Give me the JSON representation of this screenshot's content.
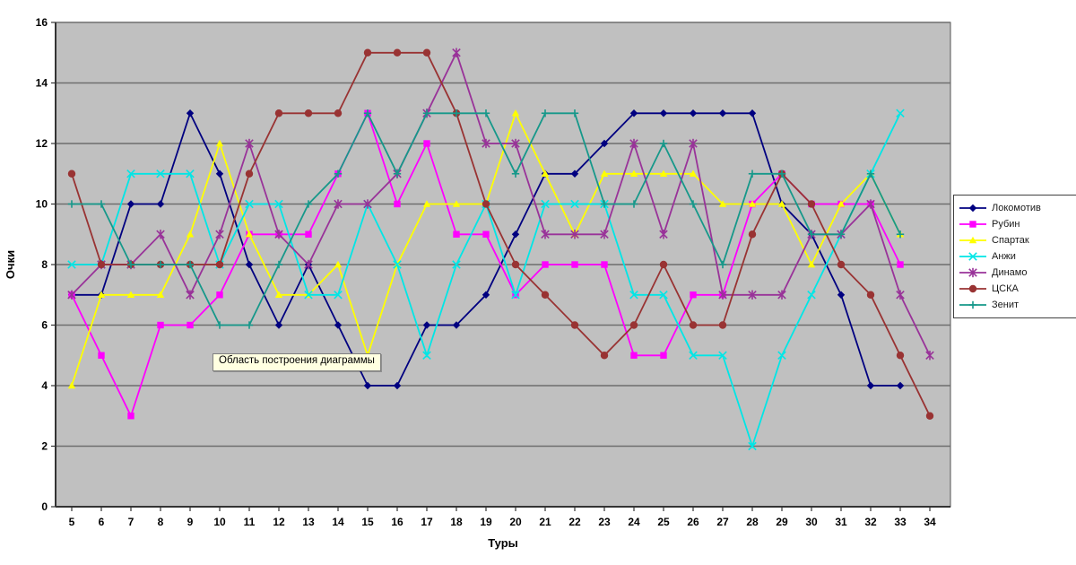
{
  "window": {
    "background": "#ffffff"
  },
  "tooltip": {
    "text": "Область построения диаграммы",
    "bg": "#FFFFE1"
  },
  "chart_data": {
    "type": "line",
    "title": "",
    "xlabel": "Туры",
    "ylabel": "Очки",
    "x": [
      5,
      6,
      7,
      8,
      9,
      10,
      11,
      12,
      13,
      14,
      15,
      16,
      17,
      18,
      19,
      20,
      21,
      22,
      23,
      24,
      25,
      26,
      27,
      28,
      29,
      30,
      31,
      32,
      33,
      34
    ],
    "ylim": [
      0,
      16
    ],
    "ytick_step": 2,
    "grid": "horizontal",
    "plot_bg": "#C0C0C0",
    "grid_color": "#6e6e6e",
    "legend_position": "right",
    "series": [
      {
        "name": "Локомотив",
        "color": "#000080",
        "marker": "diamond",
        "values": [
          7,
          7,
          10,
          10,
          13,
          11,
          8,
          6,
          8,
          6,
          4,
          4,
          6,
          6,
          7,
          9,
          11,
          11,
          12,
          13,
          13,
          13,
          13,
          13,
          10,
          9,
          7,
          4,
          4,
          null
        ]
      },
      {
        "name": "Рубин",
        "color": "#FF00FF",
        "marker": "square",
        "values": [
          7,
          5,
          3,
          6,
          6,
          7,
          9,
          9,
          9,
          11,
          13,
          10,
          12,
          9,
          9,
          7,
          8,
          8,
          8,
          5,
          5,
          7,
          7,
          10,
          11,
          10,
          10,
          10,
          8,
          null
        ]
      },
      {
        "name": "Спартак",
        "color": "#FFFF00",
        "marker": "triangle",
        "values": [
          4,
          7,
          7,
          7,
          9,
          12,
          9,
          7,
          7,
          8,
          5,
          8,
          10,
          10,
          10,
          13,
          11,
          9,
          11,
          11,
          11,
          11,
          10,
          10,
          10,
          8,
          10,
          11,
          9,
          null
        ]
      },
      {
        "name": "Анжи",
        "color": "#00E6E6",
        "marker": "x",
        "values": [
          8,
          8,
          11,
          11,
          11,
          8,
          10,
          10,
          7,
          7,
          10,
          8,
          5,
          8,
          10,
          7,
          10,
          10,
          10,
          7,
          7,
          5,
          5,
          2,
          5,
          7,
          9,
          11,
          13,
          null
        ]
      },
      {
        "name": "Динамо",
        "color": "#993399",
        "marker": "asterisk",
        "values": [
          7,
          8,
          8,
          9,
          7,
          9,
          12,
          9,
          8,
          10,
          10,
          11,
          13,
          15,
          12,
          12,
          9,
          9,
          9,
          12,
          9,
          12,
          7,
          7,
          7,
          9,
          9,
          10,
          7,
          5
        ]
      },
      {
        "name": "ЦСКА",
        "color": "#993333",
        "marker": "circle",
        "values": [
          11,
          8,
          8,
          8,
          8,
          8,
          11,
          13,
          13,
          13,
          15,
          15,
          15,
          13,
          10,
          8,
          7,
          6,
          5,
          6,
          8,
          6,
          6,
          9,
          11,
          10,
          8,
          7,
          5,
          3
        ]
      },
      {
        "name": "Зенит",
        "color": "#16988a",
        "marker": "plus",
        "values": [
          10,
          10,
          8,
          8,
          8,
          6,
          6,
          8,
          10,
          11,
          13,
          11,
          13,
          13,
          13,
          11,
          13,
          13,
          10,
          10,
          12,
          10,
          8,
          11,
          11,
          9,
          9,
          11,
          9,
          null
        ]
      }
    ]
  },
  "axes": {
    "y_ticks": [
      "0",
      "2",
      "4",
      "6",
      "8",
      "10",
      "12",
      "14",
      "16"
    ],
    "x_ticks": [
      "5",
      "6",
      "7",
      "8",
      "9",
      "10",
      "11",
      "12",
      "13",
      "14",
      "15",
      "16",
      "17",
      "18",
      "19",
      "20",
      "21",
      "22",
      "23",
      "24",
      "25",
      "26",
      "27",
      "28",
      "29",
      "30",
      "31",
      "32",
      "33",
      "34"
    ]
  }
}
